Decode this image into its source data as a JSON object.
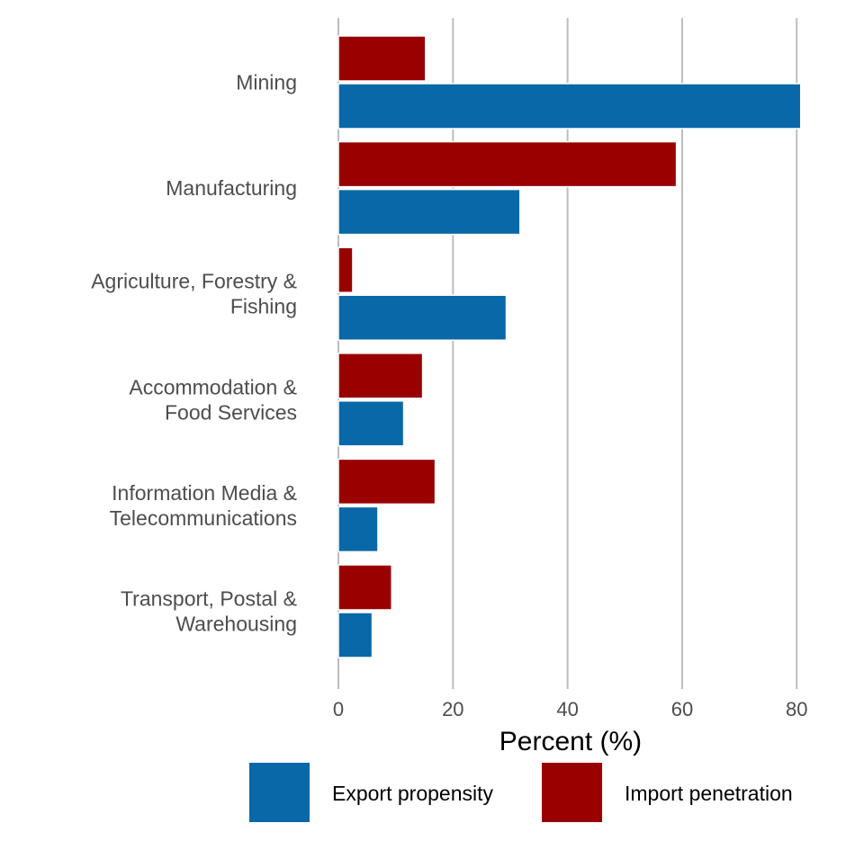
{
  "chart_data": {
    "type": "bar",
    "orientation": "horizontal",
    "categories": [
      [
        "Mining"
      ],
      [
        "Manufacturing"
      ],
      [
        "Agriculture, Forestry &",
        "Fishing"
      ],
      [
        "Accommodation &",
        "Food Services"
      ],
      [
        "Information Media &",
        "Telecommunications"
      ],
      [
        "Transport, Postal &",
        "Warehousing"
      ]
    ],
    "series": [
      {
        "name": "Import penetration",
        "color": "#990000",
        "values": [
          15.2,
          59.0,
          2.5,
          14.7,
          16.9,
          9.3
        ]
      },
      {
        "name": "Export propensity",
        "color": "#0868a8",
        "values": [
          80.7,
          31.7,
          29.3,
          11.4,
          6.9,
          5.9
        ]
      }
    ],
    "xlabel": "Percent (%)",
    "ylabel": "",
    "title": "",
    "xlim": [
      0,
      82
    ],
    "xticks": [
      0,
      20,
      40,
      60,
      80
    ],
    "grid": "vertical",
    "legend": {
      "position": "bottom",
      "items": [
        {
          "name": "Export propensity",
          "color": "#0868a8"
        },
        {
          "name": "Import penetration",
          "color": "#990000"
        }
      ]
    }
  }
}
